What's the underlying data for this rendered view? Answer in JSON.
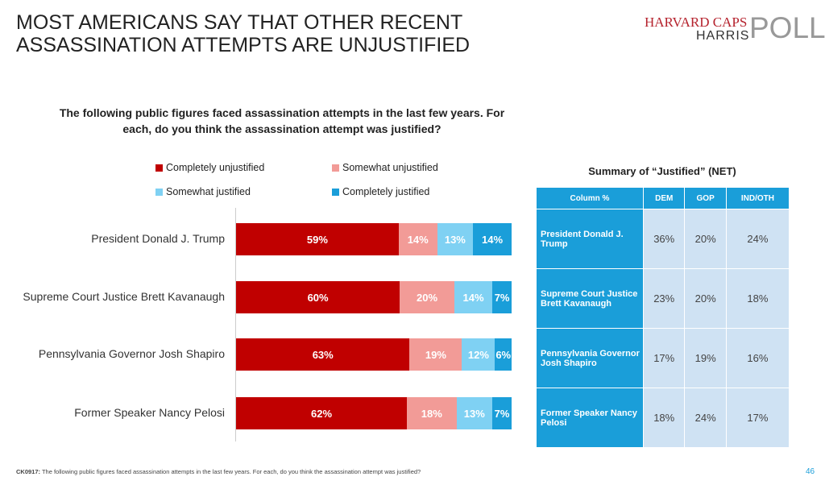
{
  "title": "MOST AMERICANS SAY THAT OTHER RECENT ASSASSINATION ATTEMPTS ARE UNJUSTIFIED",
  "logo": {
    "line1": "HARVARD CAPS",
    "line2": "HARRIS",
    "line3": "POLL"
  },
  "chart_data": {
    "type": "bar",
    "stacked": true,
    "orientation": "horizontal",
    "title": "The following public figures faced assassination attempts in the last few years. For each, do you think the assassination attempt was justified?",
    "categories": [
      "President Donald J. Trump",
      "Supreme Court Justice Brett Kavanaugh",
      "Pennsylvania Governor Josh Shapiro",
      "Former Speaker Nancy Pelosi"
    ],
    "series": [
      {
        "name": "Completely unjustified",
        "color": "#c00000",
        "values": [
          59,
          60,
          63,
          62
        ]
      },
      {
        "name": "Somewhat unjustified",
        "color": "#f29b97",
        "values": [
          14,
          20,
          19,
          18
        ]
      },
      {
        "name": "Somewhat justified",
        "color": "#7fd1f3",
        "values": [
          13,
          14,
          12,
          13
        ]
      },
      {
        "name": "Completely justified",
        "color": "#1a9ed9",
        "values": [
          14,
          7,
          6,
          7
        ]
      }
    ],
    "legend": "top",
    "unit": "%"
  },
  "summary": {
    "title": "Summary of “Justified” (NET)",
    "headers": [
      "Column %",
      "DEM",
      "GOP",
      "IND/OTH"
    ],
    "rows": [
      {
        "label": "President Donald J. Trump",
        "values": [
          "36%",
          "20%",
          "24%"
        ]
      },
      {
        "label": "Supreme Court Justice Brett Kavanaugh",
        "values": [
          "23%",
          "20%",
          "18%"
        ]
      },
      {
        "label": "Pennsylvania Governor Josh Shapiro",
        "values": [
          "17%",
          "19%",
          "16%"
        ]
      },
      {
        "label": "Former Speaker Nancy Pelosi",
        "values": [
          "18%",
          "24%",
          "17%"
        ]
      }
    ]
  },
  "footnote": {
    "code": "CK0917:",
    "text": " The following public figures faced assassination attempts in the last few years. For each, do you think the assassination attempt was justified?"
  },
  "page_number": "46"
}
